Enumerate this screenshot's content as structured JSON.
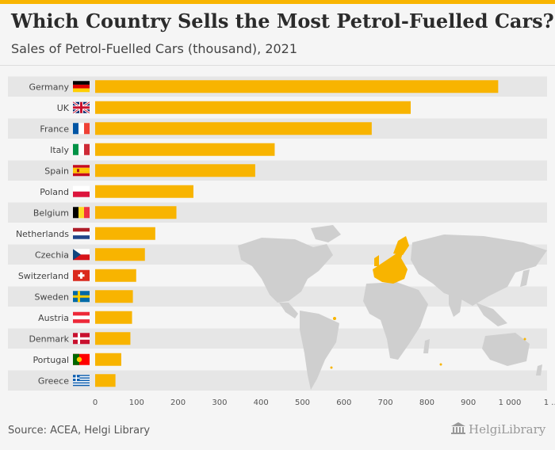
{
  "header": {
    "title": "Which Country Sells the Most Petrol-Fuelled Cars?",
    "subtitle": "Sales of Petrol-Fuelled Cars (thousand), 2021"
  },
  "footer": {
    "source": "Source: ACEA, Helgi Library",
    "logo": "HelgiLibrary"
  },
  "colors": {
    "bar": "#f8b400",
    "stripe": "#e6e6e6",
    "map_land": "#cfcfcf",
    "map_highlight": "#f8b400"
  },
  "chart_data": {
    "type": "bar",
    "orientation": "horizontal",
    "title": "Which Country Sells the Most Petrol-Fuelled Cars?",
    "subtitle": "Sales of Petrol-Fuelled Cars (thousand), 2021",
    "categories": [
      "Germany",
      "UK",
      "France",
      "Italy",
      "Spain",
      "Poland",
      "Belgium",
      "Netherlands",
      "Czechia",
      "Switzerland",
      "Sweden",
      "Austria",
      "Denmark",
      "Portugal",
      "Greece"
    ],
    "values": [
      972,
      761,
      667,
      433,
      386,
      237,
      196,
      145,
      120,
      99,
      91,
      89,
      85,
      63,
      49
    ],
    "xlim": [
      0,
      1100
    ],
    "xticks": [
      "0",
      "100",
      "200",
      "300",
      "400",
      "500",
      "600",
      "700",
      "800",
      "900",
      "1 000",
      "1 ..."
    ],
    "grid": false,
    "legend": "none"
  }
}
